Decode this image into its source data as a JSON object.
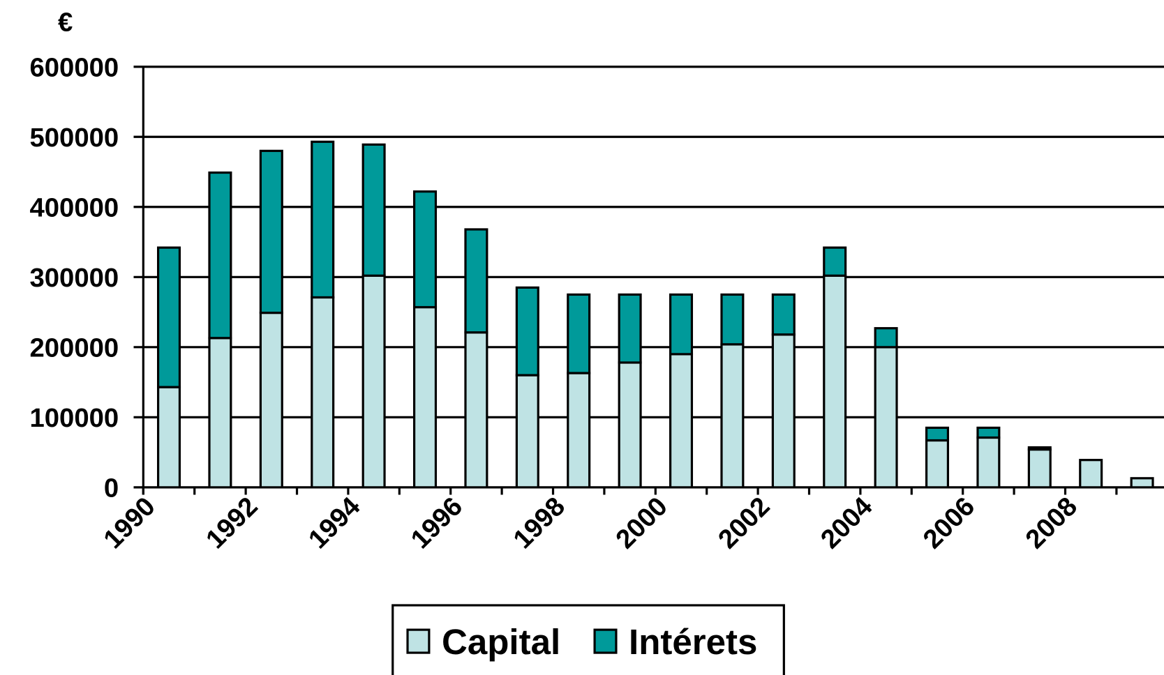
{
  "chart_data": {
    "type": "stacked-bar",
    "unit_label": "€",
    "categories": [
      "1990",
      null,
      "1992",
      null,
      "1994",
      null,
      "1996",
      null,
      "1998",
      null,
      "2000",
      null,
      "2002",
      null,
      "2004",
      null,
      "2006",
      null,
      "2008",
      null
    ],
    "series": [
      {
        "name": "Capital",
        "color": "#bfe3e4",
        "values": [
          143000,
          213000,
          249000,
          271000,
          302000,
          257000,
          221000,
          160000,
          163000,
          178000,
          190000,
          204000,
          218000,
          302000,
          200000,
          67000,
          71000,
          54000,
          39000,
          13000
        ]
      },
      {
        "name": "Intérets",
        "color": "#009a9a",
        "values": [
          199000,
          236000,
          231000,
          222000,
          187000,
          165000,
          147000,
          125000,
          112000,
          97000,
          85000,
          71000,
          57000,
          40000,
          27000,
          18000,
          14000,
          3000,
          0,
          0
        ]
      }
    ],
    "ylim": [
      0,
      600000
    ],
    "yticks": [
      0,
      100000,
      200000,
      300000,
      400000,
      500000,
      600000
    ],
    "grid": true,
    "legend": "bottom"
  }
}
